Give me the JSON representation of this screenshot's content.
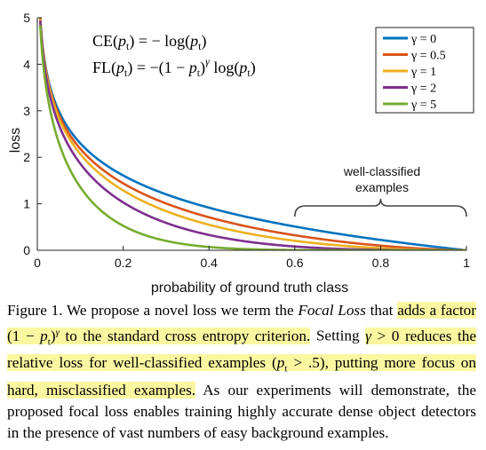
{
  "chart_data": {
    "type": "line",
    "xlabel": "probability of ground truth class",
    "ylabel": "loss",
    "xlim": [
      0,
      1
    ],
    "ylim": [
      0,
      5
    ],
    "xticks": [
      "0",
      "0.2",
      "0.4",
      "0.6",
      "0.8",
      "1"
    ],
    "yticks": [
      "0",
      "1",
      "2",
      "3",
      "4",
      "5"
    ],
    "grid": false,
    "legend_position": "top-right",
    "series": [
      {
        "name": "γ = 0",
        "gamma": 0,
        "color": "#0072BD"
      },
      {
        "name": "γ = 0.5",
        "gamma": 0.5,
        "color": "#D95319"
      },
      {
        "name": "γ = 1",
        "gamma": 1,
        "color": "#EDB120"
      },
      {
        "name": "γ = 2",
        "gamma": 2,
        "color": "#7E2F8E"
      },
      {
        "name": "γ = 5",
        "gamma": 5,
        "color": "#77AC30"
      }
    ],
    "equations": {
      "ce": "CE(pt) = − log(pt)",
      "fl": "FL(pt) = −(1 − pt)^γ log(pt)"
    },
    "annotation": {
      "line1": "well-classified",
      "line2": "examples",
      "x_range": [
        0.6,
        1.0
      ]
    }
  },
  "caption": {
    "fig_label": "Figure 1.",
    "p1": " We propose a novel loss we term the ",
    "loss_name": "Focal Loss",
    "p2": " that",
    "hl1": "adds a factor (1 − pt)γ to the standard cross entropy criterion.",
    "p3": "Setting ",
    "hl2": "γ > 0 reduces the relative loss for well-classified examples (pt > .5), putting more focus on hard, misclassified examples.",
    "p4": " As our experiments will demonstrate, the proposed focal loss enables training highly accurate dense object detectors in the presence of vast numbers of easy background examples."
  }
}
